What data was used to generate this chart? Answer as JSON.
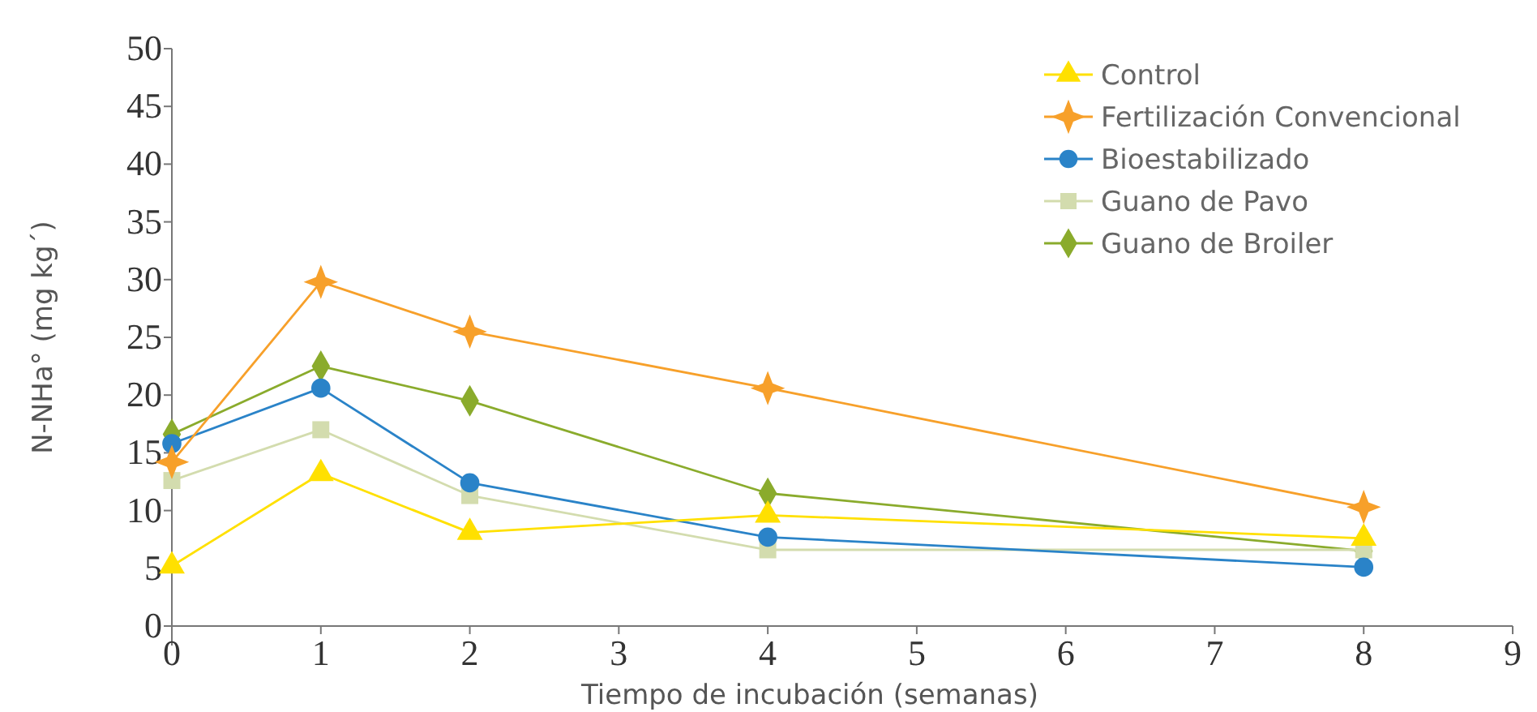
{
  "chart_data": {
    "type": "line",
    "xlabel": "Tiempo de incubación (semanas)",
    "ylabel": "N-NHa° (mg kg´)",
    "x": [
      0,
      1,
      2,
      4,
      8
    ],
    "xlim": [
      0,
      9
    ],
    "xticks": [
      0,
      1,
      2,
      3,
      4,
      5,
      6,
      7,
      8,
      9
    ],
    "ylim": [
      0,
      50
    ],
    "yticks": [
      0,
      5,
      10,
      15,
      20,
      25,
      30,
      35,
      40,
      45,
      50
    ],
    "grid": false,
    "legend": "top right",
    "series": [
      {
        "name": "Control",
        "color": "#ffe000",
        "marker": "triangle",
        "values": [
          5.2,
          13.2,
          8.1,
          9.6,
          7.6
        ]
      },
      {
        "name": "Fertilización Convencional",
        "color": "#f7a02a",
        "marker": "star",
        "values": [
          14.2,
          29.8,
          25.5,
          20.6,
          10.3
        ]
      },
      {
        "name": "Bioestabilizado",
        "color": "#2a83c8",
        "marker": "circle",
        "values": [
          15.8,
          20.6,
          12.4,
          7.7,
          5.1
        ]
      },
      {
        "name": "Guano de Pavo",
        "color": "#d3dcae",
        "marker": "square",
        "values": [
          12.6,
          17,
          11.3,
          6.6,
          6.6
        ]
      },
      {
        "name": "Guano de Broiler",
        "color": "#8aab2c",
        "marker": "diamond",
        "values": [
          16.6,
          22.5,
          19.5,
          11.5,
          6.5
        ]
      }
    ]
  }
}
